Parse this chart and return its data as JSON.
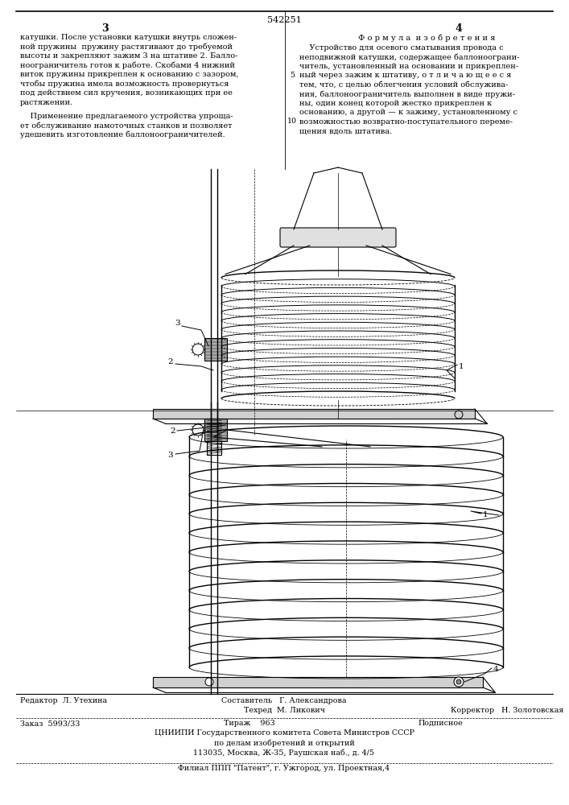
{
  "patent_number": "542251",
  "page_left": "3",
  "page_right": "4",
  "bg_color": "#ffffff",
  "top_text_left": "катушки. После установки катушки внутрь сложен-\nной пружины  пружину растягивают до требуемой\nвысоты и закрепляют зажим 3 на штативе 2. Балло-\nноограничитель готов к работе. Скобами 4 нижний\nвиток пружины прикреплен к основанию с зазором,\nчтобы пружина имела возможность провернуться\nпод действием сил кручения, возникающих при ее\nрастяжении.",
  "top_text_left2": "    Применение предлагаемого устройства упроща-\nет обслуживание намоточных станков и позволяет\nудешевить изготовление баллоноограничителей.",
  "top_text_right_title": "Ф о р м у л а  и з о б р е т е н и я",
  "top_text_right": "    Устройство для осевого сматывания провода с\nнеподвижной катушки, содержащее баллоноограни-\nчитель, установленный на основании и прикреплен-\nный через зажим к штативу, о т л и ч а ю щ е е с я\nтем, что, с целью облегчения условий обслужива-\nния, баллоноограничитель выполнен в виде пружи-\nны, один конец которой жестко прикреплен к\nоснованию, а другой — к зажиму, установленному с\nвозможностью возвратно-поступательного переме-\nщения вдоль штатива.",
  "bottom_editor": "Редактор  Л. Утехина",
  "bottom_composer": "Составитель   Г. Александрова",
  "bottom_techred": "Техред  М. Ликович",
  "bottom_corrector": "Корректор   Н. Золотовская",
  "bottom_order": "Заказ  5993/33",
  "bottom_tirazh": "Тираж    963",
  "bottom_podpisnoe": "Подписное",
  "bottom_tsnipi": "ЦНИИПИ Государственного комитета Совета Министров СССР",
  "bottom_affairs": "по делам изобретений и открытий",
  "bottom_address": "113035, Москва, Ж-35, Раушская наб., д. 4/5",
  "bottom_filial": "Филиал ППП \"Патент\", г. Ужгород, ул. Проектная,4"
}
